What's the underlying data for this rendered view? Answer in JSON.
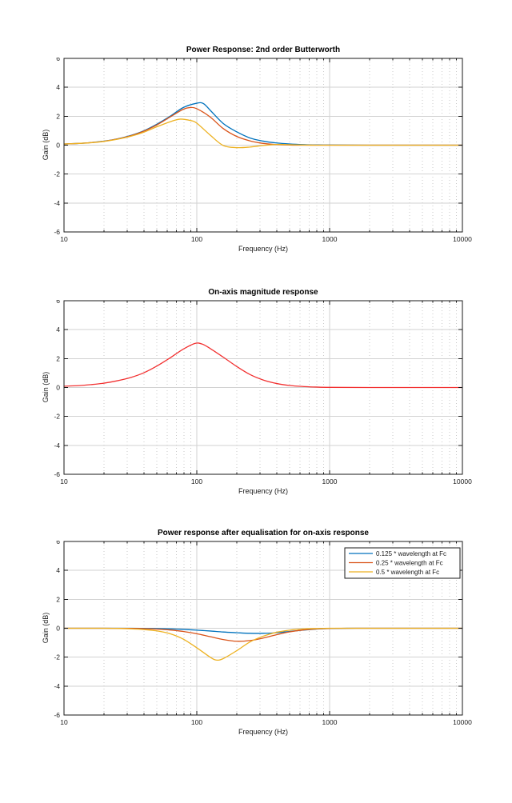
{
  "chart_data": [
    {
      "type": "line",
      "title": "Power Response: 2nd order Butterworth",
      "xlabel": "Frequency (Hz)",
      "ylabel": "Gain (dB)",
      "x_scale": "log",
      "xlim": [
        10,
        10000
      ],
      "ylim": [
        -6,
        6
      ],
      "xticks": [
        10,
        100,
        1000,
        10000
      ],
      "yticks": [
        -6,
        -4,
        -2,
        0,
        2,
        4,
        6
      ],
      "grid": "major solid, log minor dotted",
      "legend": false,
      "series": [
        {
          "name": "0.125 * wavelength at Fc",
          "color": "#0072BD",
          "points": [
            [
              10,
              0.08
            ],
            [
              13,
              0.12
            ],
            [
              16,
              0.18
            ],
            [
              20,
              0.28
            ],
            [
              25,
              0.43
            ],
            [
              32,
              0.68
            ],
            [
              40,
              1.0
            ],
            [
              50,
              1.45
            ],
            [
              63,
              2.0
            ],
            [
              79,
              2.6
            ],
            [
              100,
              2.9
            ],
            [
              112,
              2.88
            ],
            [
              126,
              2.42
            ],
            [
              158,
              1.5
            ],
            [
              200,
              0.92
            ],
            [
              251,
              0.5
            ],
            [
              316,
              0.28
            ],
            [
              398,
              0.15
            ],
            [
              501,
              0.08
            ],
            [
              631,
              0.04
            ],
            [
              794,
              0.02
            ],
            [
              1000,
              0.01
            ],
            [
              2000,
              0
            ],
            [
              5000,
              0
            ],
            [
              10000,
              0
            ]
          ]
        },
        {
          "name": "0.25 * wavelength at Fc",
          "color": "#D95319",
          "points": [
            [
              10,
              0.08
            ],
            [
              13,
              0.12
            ],
            [
              16,
              0.18
            ],
            [
              20,
              0.27
            ],
            [
              25,
              0.42
            ],
            [
              32,
              0.66
            ],
            [
              40,
              0.97
            ],
            [
              50,
              1.4
            ],
            [
              63,
              1.95
            ],
            [
              79,
              2.48
            ],
            [
              89,
              2.6
            ],
            [
              100,
              2.52
            ],
            [
              126,
              1.95
            ],
            [
              158,
              1.15
            ],
            [
              200,
              0.6
            ],
            [
              251,
              0.3
            ],
            [
              316,
              0.12
            ],
            [
              398,
              0.04
            ],
            [
              501,
              0.01
            ],
            [
              631,
              0
            ],
            [
              1000,
              0
            ],
            [
              2000,
              0
            ],
            [
              5000,
              0
            ],
            [
              10000,
              0
            ]
          ]
        },
        {
          "name": "0.5 * wavelength at Fc",
          "color": "#EDB120",
          "points": [
            [
              10,
              0.08
            ],
            [
              13,
              0.12
            ],
            [
              16,
              0.17
            ],
            [
              20,
              0.26
            ],
            [
              25,
              0.4
            ],
            [
              32,
              0.62
            ],
            [
              40,
              0.9
            ],
            [
              50,
              1.27
            ],
            [
              63,
              1.62
            ],
            [
              75,
              1.8
            ],
            [
              90,
              1.7
            ],
            [
              100,
              1.52
            ],
            [
              126,
              0.7
            ],
            [
              158,
              -0.02
            ],
            [
              200,
              -0.17
            ],
            [
              251,
              -0.13
            ],
            [
              316,
              -0.02
            ],
            [
              398,
              0.05
            ],
            [
              501,
              0.03
            ],
            [
              631,
              0.01
            ],
            [
              794,
              0
            ],
            [
              1000,
              0
            ],
            [
              2000,
              0
            ],
            [
              5000,
              0
            ],
            [
              10000,
              0
            ]
          ]
        }
      ]
    },
    {
      "type": "line",
      "title": "On-axis magnitude response",
      "xlabel": "Frequency (Hz)",
      "ylabel": "Gain (dB)",
      "x_scale": "log",
      "xlim": [
        10,
        10000
      ],
      "ylim": [
        -6,
        6
      ],
      "xticks": [
        10,
        100,
        1000,
        10000
      ],
      "yticks": [
        -6,
        -4,
        -2,
        0,
        2,
        4,
        6
      ],
      "grid": "major solid, log minor dotted",
      "legend": false,
      "series": [
        {
          "name": "",
          "color": "#F23232",
          "points": [
            [
              10,
              0.09
            ],
            [
              13,
              0.13
            ],
            [
              16,
              0.2
            ],
            [
              20,
              0.3
            ],
            [
              25,
              0.46
            ],
            [
              32,
              0.7
            ],
            [
              40,
              1.02
            ],
            [
              50,
              1.48
            ],
            [
              63,
              2.05
            ],
            [
              79,
              2.65
            ],
            [
              97,
              3.05
            ],
            [
              110,
              3.0
            ],
            [
              126,
              2.7
            ],
            [
              158,
              2.1
            ],
            [
              200,
              1.45
            ],
            [
              251,
              0.9
            ],
            [
              316,
              0.52
            ],
            [
              398,
              0.28
            ],
            [
              501,
              0.14
            ],
            [
              631,
              0.07
            ],
            [
              794,
              0.03
            ],
            [
              1000,
              0.01
            ],
            [
              2000,
              0
            ],
            [
              5000,
              0
            ],
            [
              10000,
              0
            ]
          ]
        }
      ]
    },
    {
      "type": "line",
      "title": "Power response after equalisation for on-axis response",
      "xlabel": "Frequency (Hz)",
      "ylabel": "Gain (dB)",
      "x_scale": "log",
      "xlim": [
        10,
        10000
      ],
      "ylim": [
        -6,
        6
      ],
      "xticks": [
        10,
        100,
        1000,
        10000
      ],
      "yticks": [
        -6,
        -4,
        -2,
        0,
        2,
        4,
        6
      ],
      "grid": "major solid, log minor dotted",
      "legend": true,
      "legend_position": "top-right",
      "series": [
        {
          "name": "0.125 * wavelength at Fc",
          "color": "#0072BD",
          "points": [
            [
              10,
              0
            ],
            [
              20,
              0
            ],
            [
              32,
              0
            ],
            [
              40,
              -0.01
            ],
            [
              50,
              -0.02
            ],
            [
              63,
              -0.04
            ],
            [
              79,
              -0.08
            ],
            [
              100,
              -0.13
            ],
            [
              126,
              -0.19
            ],
            [
              158,
              -0.26
            ],
            [
              200,
              -0.31
            ],
            [
              251,
              -0.35
            ],
            [
              316,
              -0.35
            ],
            [
              398,
              -0.31
            ],
            [
              501,
              -0.22
            ],
            [
              631,
              -0.13
            ],
            [
              794,
              -0.06
            ],
            [
              1000,
              -0.02
            ],
            [
              1585,
              0
            ],
            [
              2512,
              0
            ],
            [
              5000,
              0
            ],
            [
              10000,
              0
            ]
          ]
        },
        {
          "name": "0.25 * wavelength at Fc",
          "color": "#D95319",
          "points": [
            [
              10,
              0
            ],
            [
              20,
              0
            ],
            [
              32,
              -0.01
            ],
            [
              40,
              -0.03
            ],
            [
              50,
              -0.06
            ],
            [
              63,
              -0.12
            ],
            [
              79,
              -0.22
            ],
            [
              100,
              -0.38
            ],
            [
              126,
              -0.58
            ],
            [
              158,
              -0.78
            ],
            [
              200,
              -0.9
            ],
            [
              251,
              -0.85
            ],
            [
              316,
              -0.68
            ],
            [
              398,
              -0.45
            ],
            [
              501,
              -0.25
            ],
            [
              631,
              -0.12
            ],
            [
              794,
              -0.05
            ],
            [
              1000,
              -0.01
            ],
            [
              1585,
              0
            ],
            [
              5000,
              0
            ],
            [
              10000,
              0
            ]
          ]
        },
        {
          "name": "0.5 * wavelength at Fc",
          "color": "#EDB120",
          "points": [
            [
              10,
              0
            ],
            [
              20,
              0
            ],
            [
              25,
              -0.01
            ],
            [
              32,
              -0.04
            ],
            [
              40,
              -0.09
            ],
            [
              50,
              -0.18
            ],
            [
              63,
              -0.38
            ],
            [
              79,
              -0.75
            ],
            [
              100,
              -1.35
            ],
            [
              126,
              -2.0
            ],
            [
              140,
              -2.2
            ],
            [
              158,
              -2.1
            ],
            [
              200,
              -1.55
            ],
            [
              251,
              -0.95
            ],
            [
              316,
              -0.55
            ],
            [
              398,
              -0.28
            ],
            [
              501,
              -0.13
            ],
            [
              631,
              -0.05
            ],
            [
              794,
              -0.02
            ],
            [
              1000,
              0
            ],
            [
              2000,
              0
            ],
            [
              5000,
              0
            ],
            [
              10000,
              0
            ]
          ]
        }
      ]
    }
  ]
}
